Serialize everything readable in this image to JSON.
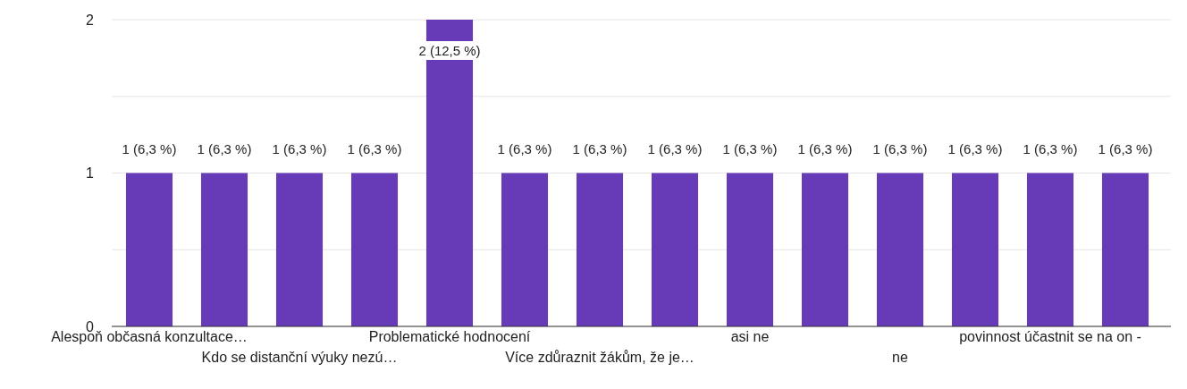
{
  "chart_data": {
    "type": "bar",
    "categories": [
      "Alespoň občasná konzultace…",
      null,
      "Kdo se distanční výuky nezú…",
      null,
      "Problematické hodnocení",
      null,
      "Více zdůraznit žákům, že je…",
      null,
      "asi ne",
      null,
      "ne",
      null,
      "povinnost účastnit se na on -",
      null
    ],
    "values": [
      1,
      1,
      1,
      1,
      2,
      1,
      1,
      1,
      1,
      1,
      1,
      1,
      1,
      1
    ],
    "value_labels": [
      "1 (6,3 %)",
      "1 (6,3 %)",
      "1 (6,3 %)",
      "1 (6,3 %)",
      "2 (12,5 %)",
      "1 (6,3 %)",
      "1 (6,3 %)",
      "1 (6,3 %)",
      "1 (6,3 %)",
      "1 (6,3 %)",
      "1 (6,3 %)",
      "1 (6,3 %)",
      "1 (6,3 %)",
      "1 (6,3 %)"
    ],
    "color": "#673ab7",
    "ylim": [
      0,
      2
    ],
    "yticks": [
      0,
      {
        "value": 0.5,
        "label": null
      },
      1,
      {
        "value": 1.5,
        "label": null
      },
      2
    ],
    "grid": true
  }
}
